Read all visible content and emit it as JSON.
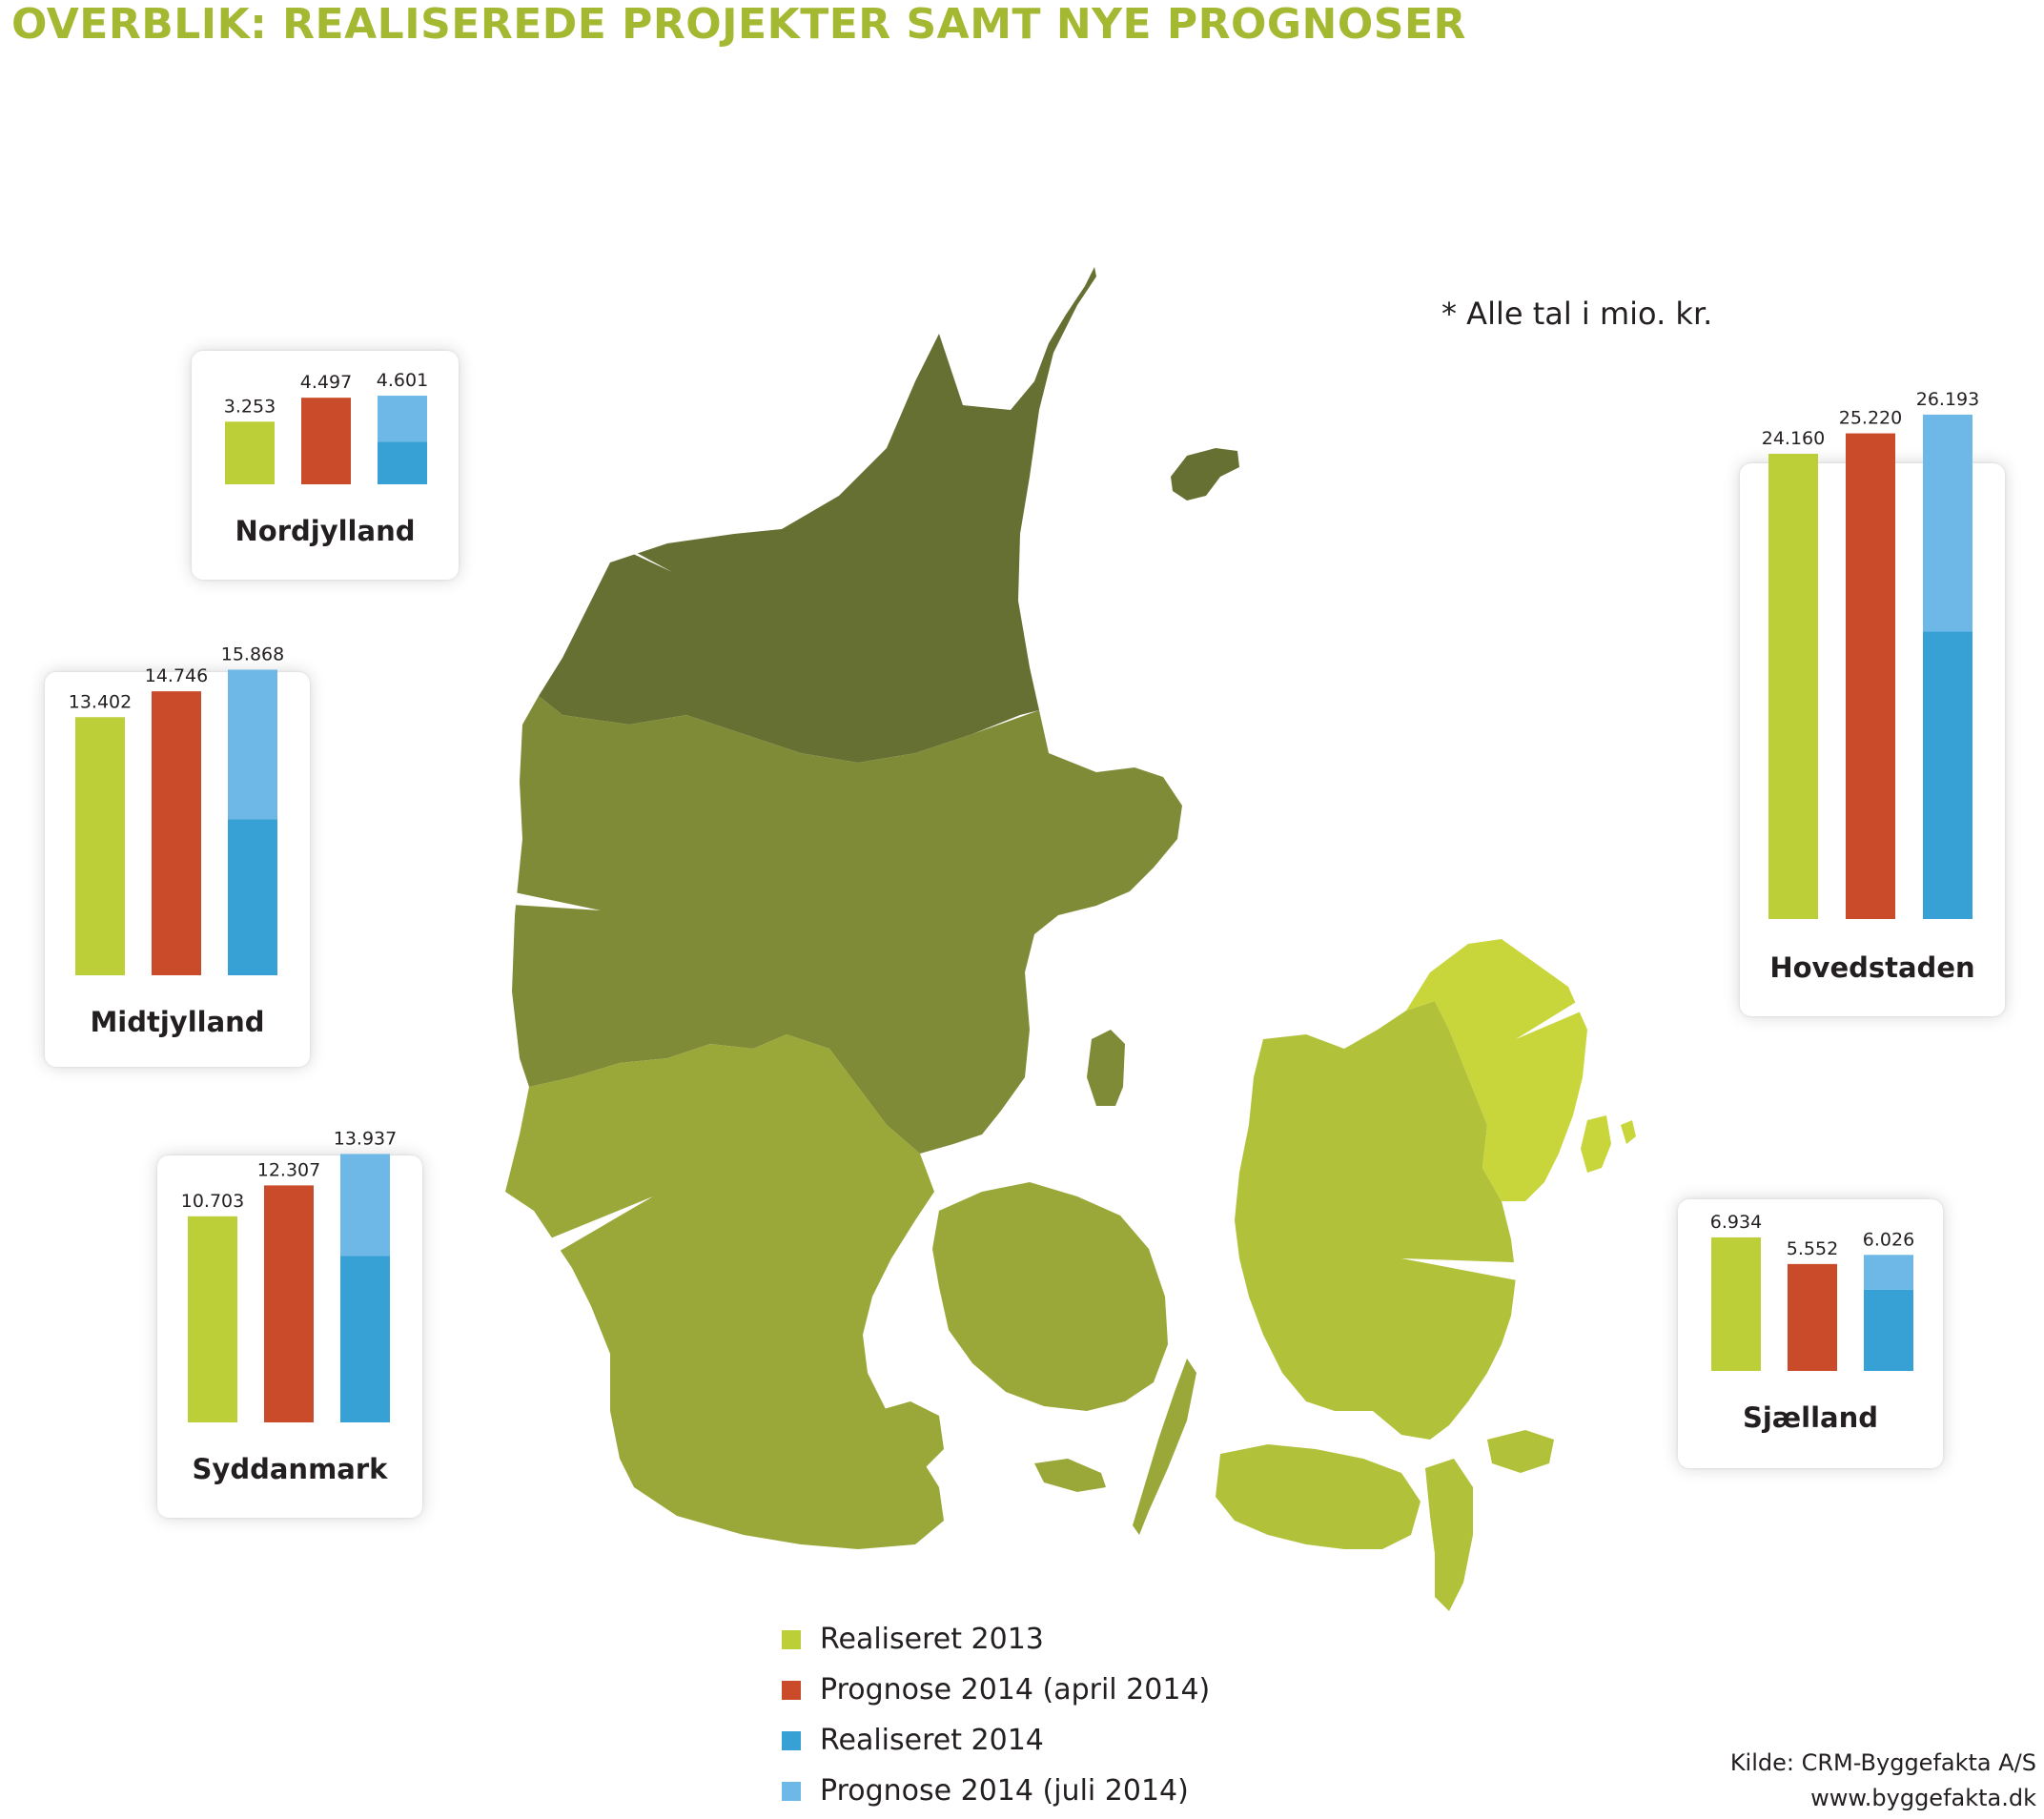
{
  "title": "OVERBLIK: REALISEREDE PROJEKTER SAMT NYE PROGNOSER",
  "unit_note": "* Alle tal i mio. kr.",
  "colors": {
    "realiseret_2013": "#bccf38",
    "prognose_april_2014": "#c94b2a",
    "realiseret_2014": "#37a1d6",
    "prognose_juli_2014": "#6db8e6",
    "title": "#a4b832",
    "nordjylland": "#667033",
    "midtjylland": "#7f8b37",
    "syddanmark": "#9aa83a",
    "sjaelland": "#b2c13a",
    "hovedstaden": "#c8d63c"
  },
  "legend": [
    {
      "label": "Realiseret 2013",
      "color": "#bccf38"
    },
    {
      "label": "Prognose 2014 (april 2014)",
      "color": "#c94b2a"
    },
    {
      "label": "Realiseret 2014",
      "color": "#37a1d6"
    },
    {
      "label": "Prognose 2014 (juli 2014)",
      "color": "#6db8e6"
    }
  ],
  "source": {
    "line1": "Kilde: CRM-Byggefakta A/S",
    "line2": "www.byggefakta.dk"
  },
  "chart_data": [
    {
      "type": "bar",
      "region": "Nordjylland",
      "categories": [
        "Realiseret 2013",
        "Prognose 2014 (april 2014)",
        "Prognose 2014 (juli 2014)"
      ],
      "values": [
        3253,
        4497,
        4601
      ],
      "labels": [
        "3.253",
        "4.497",
        "4.601"
      ],
      "realiseret_2014_share": 0.48
    },
    {
      "type": "bar",
      "region": "Midtjylland",
      "categories": [
        "Realiseret 2013",
        "Prognose 2014 (april 2014)",
        "Prognose 2014 (juli 2014)"
      ],
      "values": [
        13402,
        14746,
        15868
      ],
      "labels": [
        "13.402",
        "14.746",
        "15.868"
      ],
      "realiseret_2014_share": 0.51
    },
    {
      "type": "bar",
      "region": "Syddanmark",
      "categories": [
        "Realiseret 2013",
        "Prognose 2014 (april 2014)",
        "Prognose 2014 (juli 2014)"
      ],
      "values": [
        10703,
        12307,
        13937
      ],
      "labels": [
        "10.703",
        "12.307",
        "13.937"
      ],
      "realiseret_2014_share": 0.62
    },
    {
      "type": "bar",
      "region": "Hovedstaden",
      "categories": [
        "Realiseret 2013",
        "Prognose 2014 (april 2014)",
        "Prognose 2014 (juli 2014)"
      ],
      "values": [
        24160,
        25220,
        26193
      ],
      "labels": [
        "24.160",
        "25.220",
        "26.193"
      ],
      "realiseret_2014_share": 0.57
    },
    {
      "type": "bar",
      "region": "Sjælland",
      "categories": [
        "Realiseret 2013",
        "Prognose 2014 (april 2014)",
        "Prognose 2014 (juli 2014)"
      ],
      "values": [
        6934,
        5552,
        6026
      ],
      "labels": [
        "6.934",
        "5.552",
        "6.026"
      ],
      "realiseret_2014_share": 0.7
    }
  ]
}
